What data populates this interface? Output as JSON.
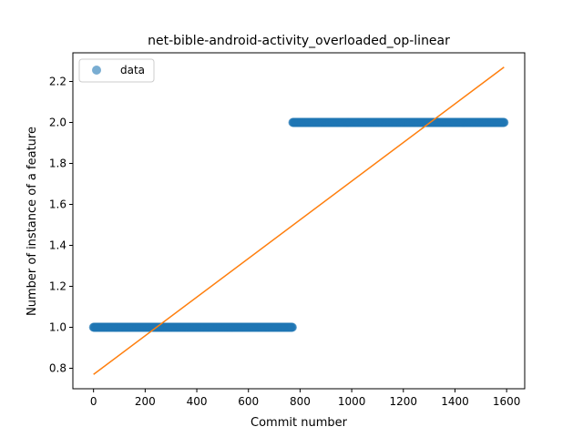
{
  "chart_data": {
    "type": "scatter",
    "title": "net-bible-android-activity_overloaded_op-linear",
    "xlabel": "Commit number",
    "ylabel": "Number of instance of a feature",
    "xlim": [
      -80,
      1670
    ],
    "ylim": [
      0.7,
      2.34
    ],
    "xticks": [
      0,
      200,
      400,
      600,
      800,
      1000,
      1200,
      1400,
      1600
    ],
    "yticks": [
      0.8,
      1.0,
      1.2,
      1.4,
      1.6,
      1.8,
      2.0,
      2.2
    ],
    "legend": {
      "entries": [
        "data"
      ],
      "position": "top-left"
    },
    "series": [
      {
        "name": "data",
        "kind": "scatter",
        "color": "#1f77b4",
        "segments": [
          {
            "x_start": 0,
            "x_end": 770,
            "y": 1.0
          },
          {
            "x_start": 772,
            "x_end": 1590,
            "y": 2.0
          }
        ]
      },
      {
        "kind": "line",
        "color": "#ff7f0e",
        "x": [
          0,
          1590
        ],
        "y": [
          0.77,
          2.27
        ]
      }
    ]
  }
}
